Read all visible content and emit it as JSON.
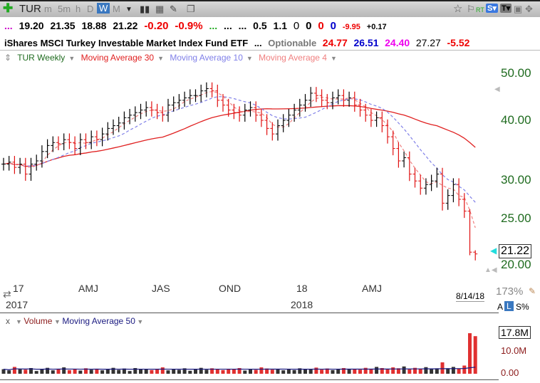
{
  "toolbar": {
    "symbol": "TUR",
    "intervals": [
      "m",
      "5m",
      "h",
      "D",
      "W",
      "M"
    ],
    "active_interval": "W",
    "rt": "RT",
    "s_btn": "S▾",
    "t_btn": "T▾"
  },
  "quote": {
    "dots": "...",
    "open": "19.20",
    "high": "21.35",
    "low": "18.88",
    "close": "21.22",
    "change": "-0.20",
    "change_pct": "-0.9%",
    "g_dots": "...",
    "e1": "...",
    "e2": "...",
    "v1": "0.5",
    "v2": "1.1",
    "z1": "0",
    "z2": "0",
    "z3": "0",
    "z4": "0",
    "v3": "-9.95",
    "v4": "+0.17"
  },
  "name": {
    "title": "iShares MSCI Turkey Investable Market Index Fund ETF",
    "dots": "...",
    "optionable": "Optionable",
    "n1": "24.77",
    "n2": "26.51",
    "n3": "24.40",
    "n4": "27.27",
    "n5": "-5.52"
  },
  "legend": {
    "main": "TUR Weekly",
    "ma30": "Moving Average 30",
    "ma10": "Moving Average 10",
    "ma4": "Moving Average 4"
  },
  "axis": {
    "y_labels": [
      "50.00",
      "40.00",
      "30.00",
      "25.00",
      "20.00"
    ],
    "last_price": "21.22",
    "x_labels": [
      "17",
      "AMJ",
      "JAS",
      "OND",
      "18",
      "AMJ"
    ],
    "years": [
      "2017",
      "2018"
    ],
    "date": "8/14/18",
    "zoom": "173%",
    "scale_a": "A",
    "scale_l": "L",
    "scale_s": "S%"
  },
  "volume": {
    "x": "x",
    "label": "Volume",
    "ma": "Moving Average 50",
    "labels": [
      "17.8M",
      "10.0M",
      "0.00"
    ]
  },
  "colors": {
    "up": "#000000",
    "down": "#e01010",
    "ma30": "#e02020",
    "ma10": "#8080e8",
    "ma4": "#f08080",
    "axis": "#1f6b1f"
  },
  "chart_data": {
    "type": "ohlc",
    "scale": "log",
    "ylim": [
      18,
      55
    ],
    "closes": [
      32.5,
      32.8,
      32,
      32.5,
      31,
      32.5,
      33,
      34.5,
      35.5,
      36,
      35.8,
      36.5,
      36,
      35,
      36.5,
      36,
      37,
      36.5,
      37.5,
      38.5,
      39,
      39.5,
      40.5,
      41,
      41.5,
      42,
      42.5,
      42,
      41.5,
      41,
      43,
      43.5,
      44,
      44.5,
      45,
      45,
      46,
      46.5,
      46,
      44,
      43,
      42,
      41.5,
      41,
      42,
      42.5,
      41,
      40,
      38.5,
      37.5,
      39,
      40,
      41,
      42,
      43,
      44,
      45.5,
      45,
      44,
      43.5,
      44.5,
      45,
      44,
      44.5,
      43,
      42,
      41,
      40,
      40.5,
      39,
      37,
      35,
      33,
      33.5,
      31,
      30,
      29,
      29.5,
      30,
      31,
      27,
      28,
      29.5,
      27.5,
      26,
      21.4,
      21.22
    ],
    "volumes_m": [
      2,
      1.5,
      3,
      2,
      1.8,
      2.5,
      1.2,
      2,
      2.6,
      1.5,
      2.2,
      2.8,
      1.6,
      2,
      1.4,
      2.4,
      1.8,
      2.2,
      1.5,
      2,
      2.6,
      1.7,
      2.3,
      1.2,
      2.5,
      1.9,
      2.1,
      1.6,
      2.2,
      2.8,
      1.5,
      2,
      1.7,
      2.4,
      1.3,
      2.1,
      2.6,
      1.8,
      2.4,
      2,
      1.6,
      2.2,
      1.9,
      2.5,
      1.4,
      2.1,
      1.7,
      2.8,
      2.3,
      1.8,
      2,
      1.5,
      2.2,
      1.6,
      2.4,
      1.9,
      2.1,
      2.7,
      1.8,
      2.3,
      1.6,
      2.2,
      2.5,
      1.9,
      2.1,
      1.8,
      2.6,
      2.2,
      3,
      2.5,
      2,
      2.8,
      2.4,
      3.2,
      1.9,
      2.6,
      2.1,
      2.9,
      2.2,
      2.4,
      5,
      2.4,
      3,
      2.2,
      3.6,
      17.8,
      16.5
    ]
  }
}
